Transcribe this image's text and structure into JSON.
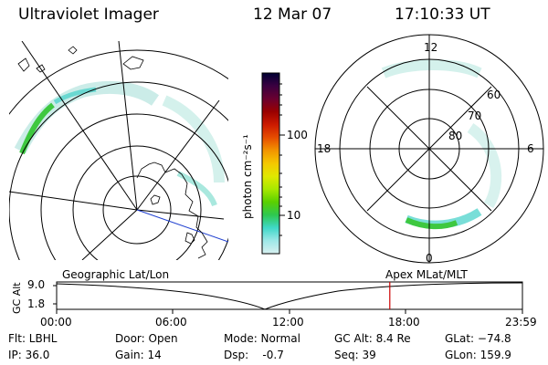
{
  "header": {
    "title": "Ultraviolet Imager",
    "date": "12 Mar 07",
    "time": "17:10:33 UT"
  },
  "colorbar": {
    "unit_label": "photon cm⁻²s⁻¹",
    "ticks": [
      "100",
      "10"
    ],
    "colors": [
      "#000033",
      "#3a0040",
      "#6a0030",
      "#9a0000",
      "#cc1a00",
      "#e64d00",
      "#f29400",
      "#f5c800",
      "#e0e800",
      "#a8e800",
      "#5ad000",
      "#2ec850",
      "#40d8c8",
      "#9ee8e8",
      "#d8f0f0"
    ]
  },
  "polar_plot": {
    "labels": {
      "top": "12",
      "left": "18",
      "right": "6",
      "bottom": "0"
    },
    "rings": [
      "60",
      "70",
      "80"
    ]
  },
  "timeline": {
    "left_title": "Geographic Lat/Lon",
    "right_title": "Apex MLat/MLT",
    "y_axis_label": "GC Alt",
    "y_ticks": [
      "9.0",
      "1.8"
    ],
    "x_ticks": [
      "00:00",
      "06:00",
      "12:00",
      "18:00",
      "23:59"
    ],
    "marker_time": "17:10",
    "marker_color": "#cc0000"
  },
  "info": {
    "filter": "Flt: LBHL",
    "ip": "IP: 36.0",
    "door": "Door: Open",
    "gain": "Gain: 14",
    "mode": "Mode: Normal",
    "dsp": "Dsp:    -0.7",
    "gc_alt": "GC Alt: 8.4 Re",
    "seq": "Seq: 39",
    "glat": "GLat: −74.8",
    "glon": "GLon: 159.9"
  }
}
